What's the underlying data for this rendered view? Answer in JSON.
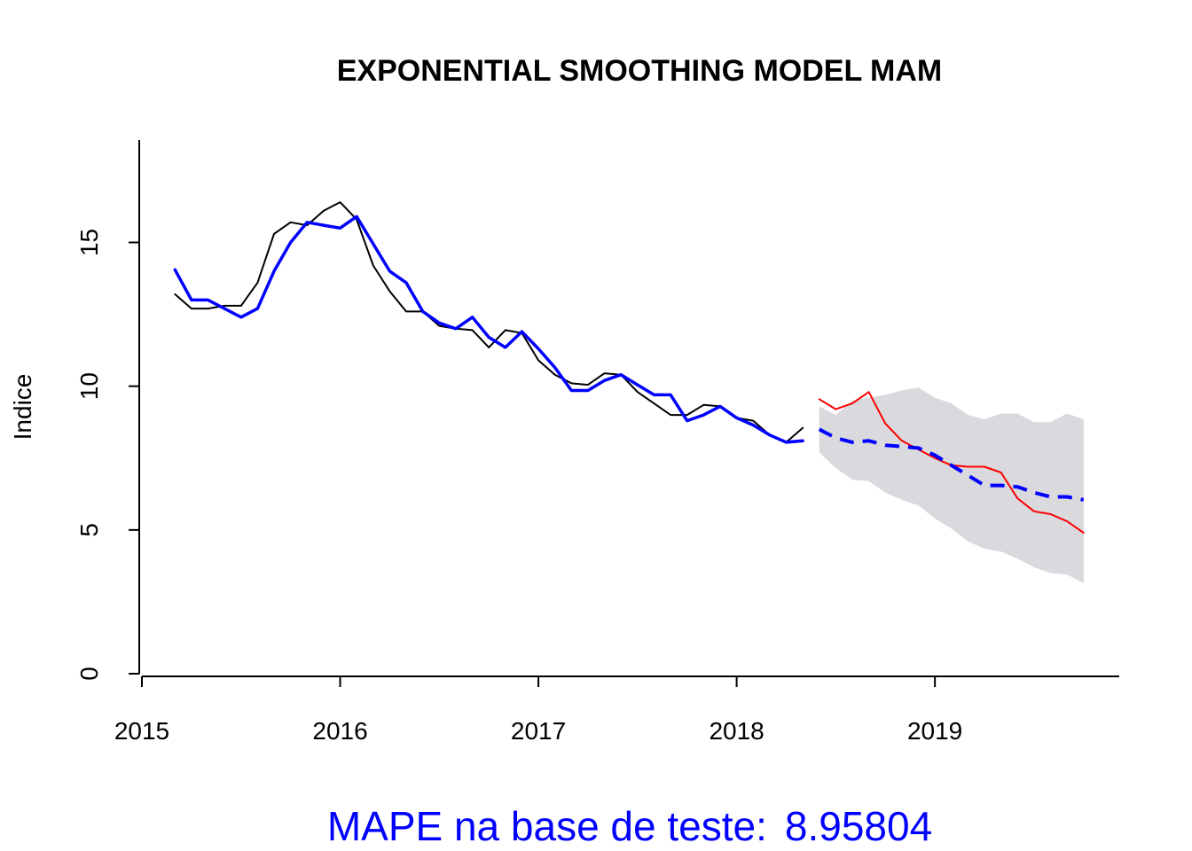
{
  "chart_data": {
    "type": "line",
    "title": "EXPONENTIAL SMOOTHING MODEL MAM",
    "xlabel": "",
    "ylabel": "Indice",
    "xlim": [
      2015.0,
      2019.93
    ],
    "ylim": [
      0,
      18.5
    ],
    "x_ticks": [
      2015,
      2016,
      2017,
      2018,
      2019
    ],
    "y_ticks": [
      0,
      5,
      10,
      15
    ],
    "grid": false,
    "legend": "none",
    "colors": {
      "actual": "#000000",
      "fitted": "#0000ff",
      "test": "#ff0000",
      "forecast": "#0000ff",
      "interval": "#d9d9de",
      "caption": "#0000ff"
    },
    "series": [
      {
        "style": "actual",
        "x": [
          2015.1667,
          2015.25,
          2015.3333,
          2015.4167,
          2015.5,
          2015.5833,
          2015.6667,
          2015.75,
          2015.8333,
          2015.9167,
          2016.0,
          2016.0833,
          2016.1667,
          2016.25,
          2016.3333,
          2016.4167,
          2016.5,
          2016.5833,
          2016.6667,
          2016.75,
          2016.8333,
          2016.9167,
          2017.0,
          2017.0833,
          2017.1667,
          2017.25,
          2017.3333,
          2017.4167,
          2017.5,
          2017.5833,
          2017.6667,
          2017.75,
          2017.8333,
          2017.9167,
          2018.0,
          2018.0833,
          2018.1667,
          2018.25,
          2018.3333
        ],
        "y": [
          13.2,
          12.7,
          12.7,
          12.8,
          12.8,
          13.6,
          15.3,
          15.7,
          15.6,
          16.1,
          16.4,
          15.8,
          14.2,
          13.3,
          12.6,
          12.6,
          12.1,
          12.0,
          11.95,
          11.35,
          11.95,
          11.85,
          10.9,
          10.4,
          10.1,
          10.05,
          10.45,
          10.4,
          9.8,
          9.4,
          9.0,
          9.0,
          9.35,
          9.3,
          8.9,
          8.8,
          8.3,
          8.05,
          8.55
        ]
      },
      {
        "style": "fitted",
        "x": [
          2015.1667,
          2015.25,
          2015.3333,
          2015.4167,
          2015.5,
          2015.5833,
          2015.6667,
          2015.75,
          2015.8333,
          2015.9167,
          2016.0,
          2016.0833,
          2016.1667,
          2016.25,
          2016.3333,
          2016.4167,
          2016.5,
          2016.5833,
          2016.6667,
          2016.75,
          2016.8333,
          2016.9167,
          2017.0,
          2017.0833,
          2017.1667,
          2017.25,
          2017.3333,
          2017.4167,
          2017.5,
          2017.5833,
          2017.6667,
          2017.75,
          2017.8333,
          2017.9167,
          2018.0,
          2018.0833,
          2018.1667,
          2018.25,
          2018.3333
        ],
        "y": [
          14.05,
          13.0,
          13.0,
          12.7,
          12.4,
          12.7,
          14.0,
          15.0,
          15.7,
          15.6,
          15.5,
          15.9,
          14.95,
          14.0,
          13.6,
          12.6,
          12.2,
          12.0,
          12.4,
          11.7,
          11.35,
          11.9,
          11.3,
          10.65,
          9.85,
          9.85,
          10.2,
          10.4,
          10.05,
          9.7,
          9.7,
          8.8,
          9.0,
          9.3,
          8.9,
          8.65,
          8.3,
          8.05,
          8.1
        ]
      },
      {
        "style": "test",
        "x": [
          2018.4167,
          2018.5,
          2018.5833,
          2018.6667,
          2018.75,
          2018.8333,
          2018.9167,
          2019.0,
          2019.0833,
          2019.1667,
          2019.25,
          2019.3333,
          2019.4167,
          2019.5,
          2019.5833,
          2019.6667,
          2019.75
        ],
        "y": [
          9.55,
          9.2,
          9.4,
          9.8,
          8.7,
          8.1,
          7.8,
          7.5,
          7.25,
          7.2,
          7.2,
          7.0,
          6.1,
          5.65,
          5.55,
          5.3,
          4.9
        ]
      },
      {
        "style": "forecast",
        "x": [
          2018.4167,
          2018.5,
          2018.5833,
          2018.6667,
          2018.75,
          2018.8333,
          2018.9167,
          2019.0,
          2019.0833,
          2019.1667,
          2019.25,
          2019.3333,
          2019.4167,
          2019.5,
          2019.5833,
          2019.6667,
          2019.75
        ],
        "y": [
          8.5,
          8.2,
          8.05,
          8.1,
          7.95,
          7.9,
          7.85,
          7.6,
          7.25,
          6.9,
          6.55,
          6.55,
          6.5,
          6.3,
          6.15,
          6.15,
          6.05
        ]
      }
    ],
    "interval": {
      "x": [
        2018.4167,
        2018.5,
        2018.5833,
        2018.6667,
        2018.75,
        2018.8333,
        2018.9167,
        2019.0,
        2019.0833,
        2019.1667,
        2019.25,
        2019.3333,
        2019.4167,
        2019.5,
        2019.5833,
        2019.6667,
        2019.75
      ],
      "upper": [
        9.3,
        9.0,
        9.5,
        9.6,
        9.7,
        9.85,
        9.95,
        9.6,
        9.4,
        9.0,
        8.85,
        9.05,
        9.05,
        8.75,
        8.75,
        9.05,
        8.85
      ],
      "lower": [
        7.7,
        7.15,
        6.75,
        6.7,
        6.3,
        6.05,
        5.85,
        5.4,
        5.05,
        4.6,
        4.35,
        4.25,
        4.0,
        3.7,
        3.5,
        3.45,
        3.15
      ]
    }
  },
  "caption": {
    "label": "MAPE na base de teste:",
    "value": "8.95804"
  }
}
